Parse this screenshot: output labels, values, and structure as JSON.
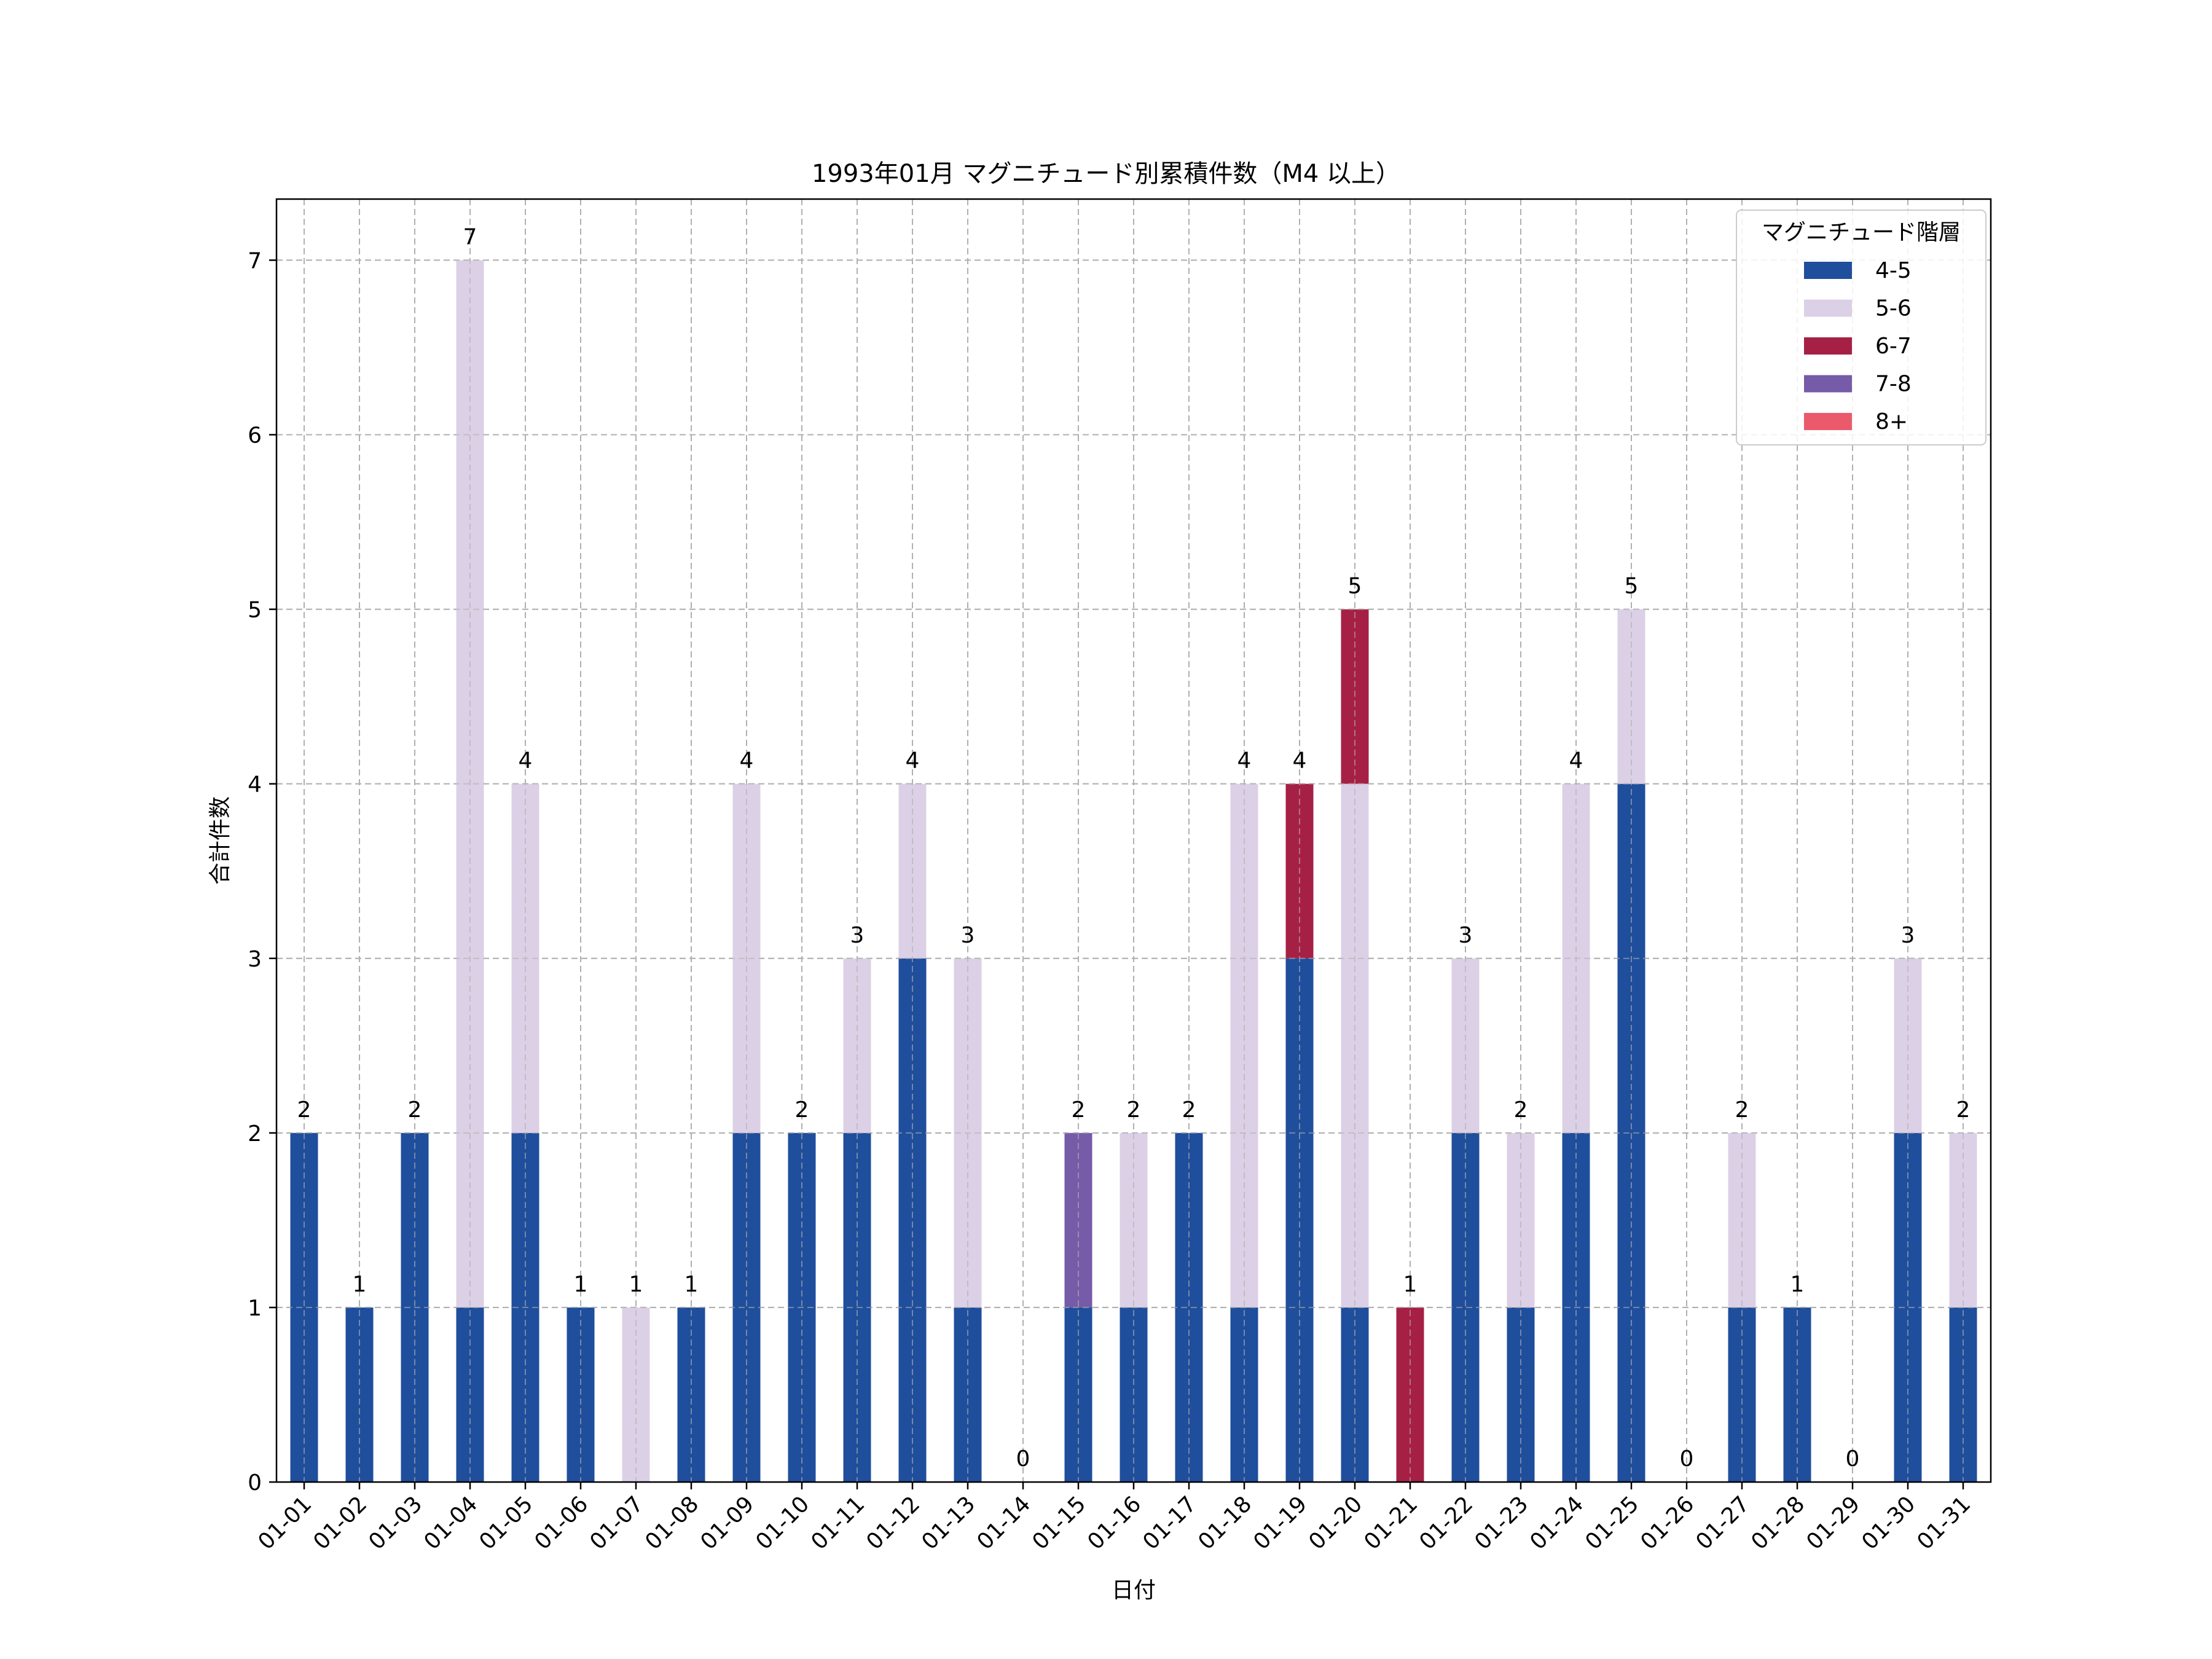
{
  "chart_data": {
    "type": "bar",
    "stacked": true,
    "title": "1993年01月 マグニチュード別累積件数（M4 以上）",
    "xlabel": "日付",
    "ylabel": "合計件数",
    "ylim": [
      0,
      7.35
    ],
    "yticks": [
      0,
      1,
      2,
      3,
      4,
      5,
      6,
      7
    ],
    "grid": true,
    "legend_title": "マグニチュード階層",
    "legend_position": "top-right",
    "categories": [
      "01-01",
      "01-02",
      "01-03",
      "01-04",
      "01-05",
      "01-06",
      "01-07",
      "01-08",
      "01-09",
      "01-10",
      "01-11",
      "01-12",
      "01-13",
      "01-14",
      "01-15",
      "01-16",
      "01-17",
      "01-18",
      "01-19",
      "01-20",
      "01-21",
      "01-22",
      "01-23",
      "01-24",
      "01-25",
      "01-26",
      "01-27",
      "01-28",
      "01-29",
      "01-30",
      "01-31"
    ],
    "series": [
      {
        "name": "4-5",
        "color": "#1f4e9c",
        "values": [
          2,
          1,
          2,
          1,
          2,
          1,
          0,
          1,
          2,
          2,
          2,
          3,
          1,
          0,
          1,
          1,
          2,
          1,
          3,
          1,
          0,
          2,
          1,
          2,
          4,
          0,
          1,
          1,
          0,
          2,
          1
        ]
      },
      {
        "name": "5-6",
        "color": "#dcd0e6",
        "values": [
          0,
          0,
          0,
          6,
          2,
          0,
          1,
          0,
          2,
          0,
          1,
          1,
          2,
          0,
          0,
          1,
          0,
          3,
          0,
          3,
          0,
          1,
          1,
          2,
          1,
          0,
          1,
          0,
          0,
          1,
          1
        ]
      },
      {
        "name": "6-7",
        "color": "#a62046",
        "values": [
          0,
          0,
          0,
          0,
          0,
          0,
          0,
          0,
          0,
          0,
          0,
          0,
          0,
          0,
          0,
          0,
          0,
          0,
          1,
          1,
          1,
          0,
          0,
          0,
          0,
          0,
          0,
          0,
          0,
          0,
          0
        ]
      },
      {
        "name": "7-8",
        "color": "#765ba8",
        "values": [
          0,
          0,
          0,
          0,
          0,
          0,
          0,
          0,
          0,
          0,
          0,
          0,
          0,
          0,
          1,
          0,
          0,
          0,
          0,
          0,
          0,
          0,
          0,
          0,
          0,
          0,
          0,
          0,
          0,
          0,
          0
        ]
      },
      {
        "name": "8+",
        "color": "#ea5a6b",
        "values": [
          0,
          0,
          0,
          0,
          0,
          0,
          0,
          0,
          0,
          0,
          0,
          0,
          0,
          0,
          0,
          0,
          0,
          0,
          0,
          0,
          0,
          0,
          0,
          0,
          0,
          0,
          0,
          0,
          0,
          0,
          0
        ]
      }
    ],
    "totals": [
      2,
      1,
      2,
      7,
      4,
      1,
      1,
      1,
      4,
      2,
      3,
      4,
      3,
      0,
      2,
      2,
      2,
      4,
      4,
      5,
      1,
      3,
      2,
      4,
      5,
      0,
      2,
      1,
      0,
      3,
      2
    ]
  }
}
